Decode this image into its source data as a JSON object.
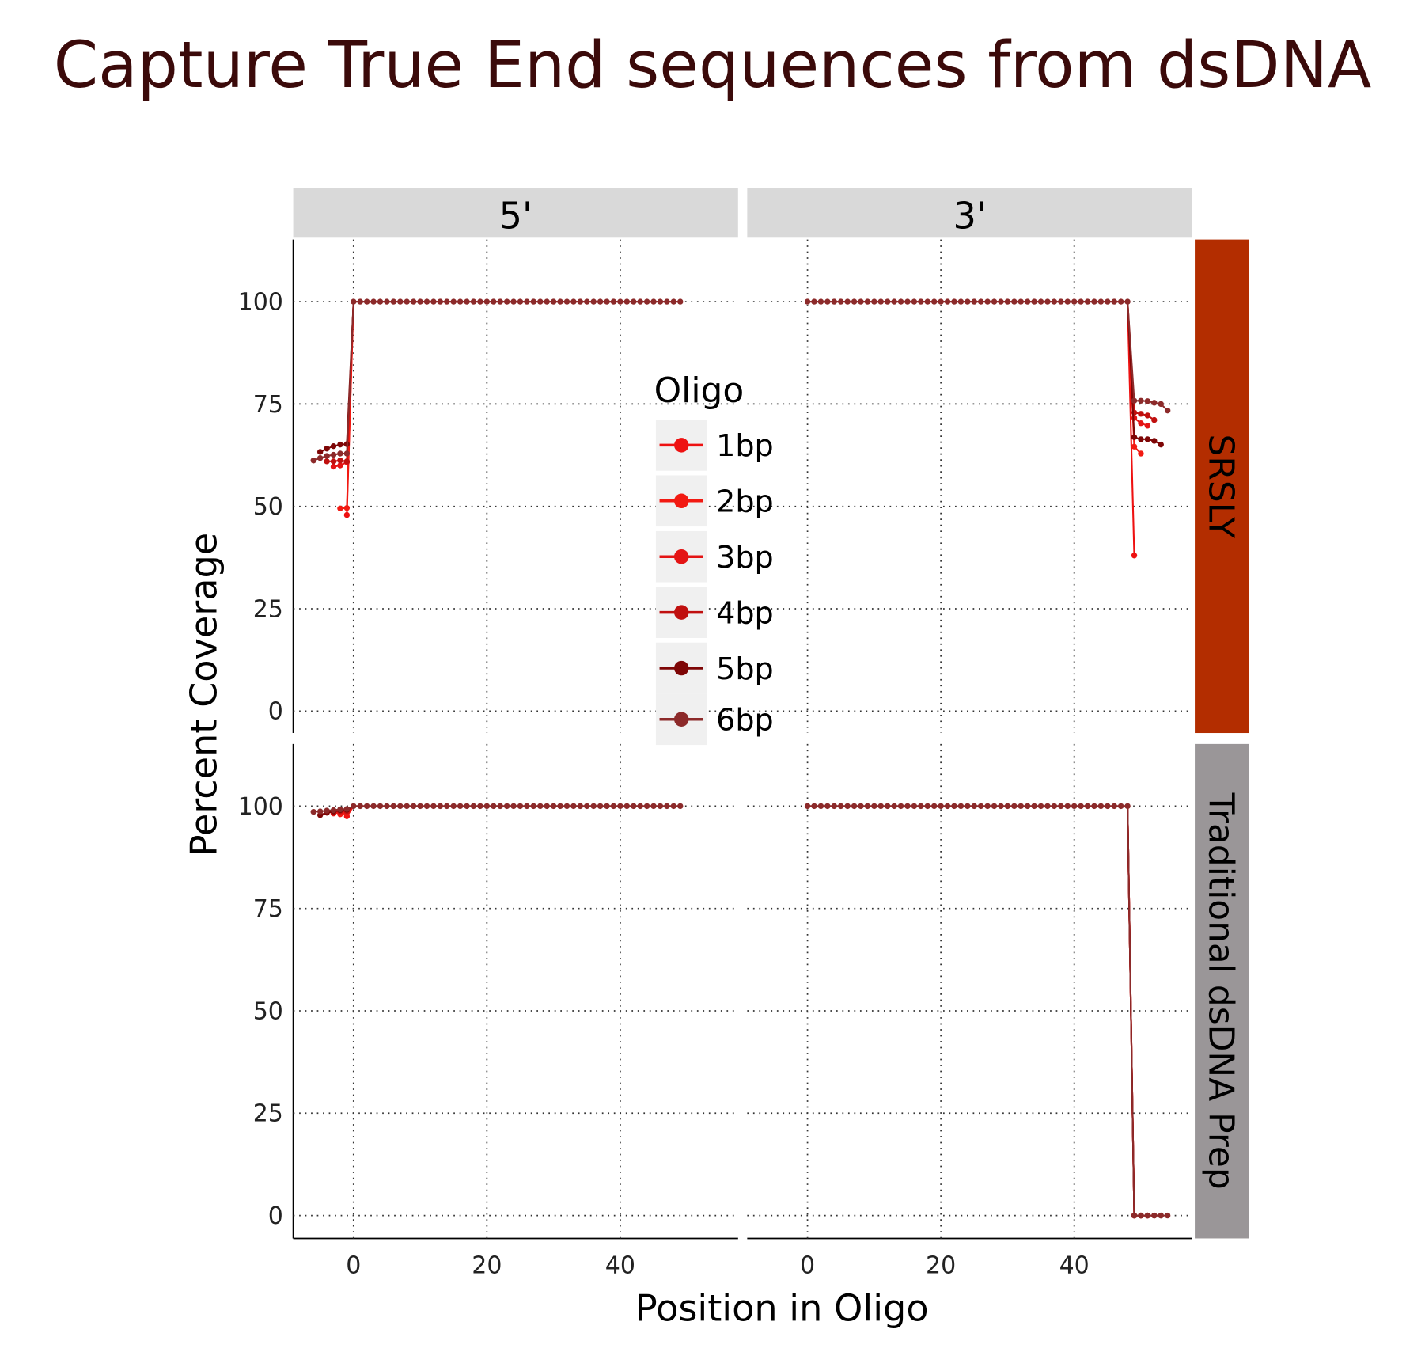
{
  "chart_data": {
    "type": "line",
    "title": "Capture True End sequences from dsDNA",
    "xlabel": "Position in Oligo",
    "ylabel": "Percent Coverage",
    "ylim": [
      -5,
      115
    ],
    "yticks": [
      0,
      25,
      50,
      75,
      100
    ],
    "xticks": [
      0,
      20,
      40
    ],
    "grid": true,
    "col_facets": [
      "5'",
      "3'"
    ],
    "row_facets": [
      "SRSLY",
      "Traditional dsDNA Prep"
    ],
    "legend": {
      "title": "Oligo",
      "placement": "center"
    },
    "series_names": [
      "1bp",
      "2bp",
      "3bp",
      "4bp",
      "5bp",
      "6bp"
    ],
    "colors": {
      "1bp": "#ee1111",
      "2bp": "#f21a12",
      "3bp": "#e41414",
      "4bp": "#c0100f",
      "5bp": "#7e0606",
      "6bp": "#8c2a2a",
      "srsly_strip": "#b32d00",
      "traditional_strip": "#9a9698",
      "col_strip": "#d9d9d9",
      "title": "#3b0a0a"
    },
    "panels": [
      {
        "col": "5'",
        "row": "SRSLY",
        "series": [
          {
            "name": "1bp",
            "x": [
              -1
            ],
            "y": [
              47.9
            ]
          },
          {
            "name": "2bp",
            "x": [
              -2,
              -1
            ],
            "y": [
              49.5,
              49.6
            ]
          },
          {
            "name": "3bp",
            "x": [
              -3,
              -2,
              -1
            ],
            "y": [
              59.7,
              60.0,
              60.8
            ]
          },
          {
            "name": "4bp",
            "x": [
              -4,
              -3,
              -2,
              -1
            ],
            "y": [
              61.0,
              61.0,
              61.2,
              61.0
            ]
          },
          {
            "name": "5bp",
            "x": [
              -5,
              -4,
              -3,
              -2,
              -1
            ],
            "y": [
              63.3,
              64.1,
              64.7,
              65.1,
              65.2
            ]
          },
          {
            "name": "6bp",
            "x": [
              -6,
              -5,
              -4,
              -3,
              -2,
              -1
            ],
            "y": [
              61.2,
              61.8,
              62.3,
              62.6,
              62.9,
              62.9
            ]
          }
        ],
        "main": {
          "x_from": 0,
          "x_to": 49,
          "y": 100
        }
      },
      {
        "col": "3'",
        "row": "SRSLY",
        "series": [
          {
            "name": "1bp",
            "x": [
              49
            ],
            "y": [
              38.0
            ]
          },
          {
            "name": "2bp",
            "x": [
              49,
              50
            ],
            "y": [
              64.6,
              62.9
            ]
          },
          {
            "name": "3bp",
            "x": [
              49,
              50,
              51
            ],
            "y": [
              71.6,
              70.3,
              69.7
            ]
          },
          {
            "name": "4bp",
            "x": [
              49,
              50,
              51,
              52
            ],
            "y": [
              72.9,
              72.6,
              72.2,
              71.1
            ]
          },
          {
            "name": "5bp",
            "x": [
              49,
              50,
              51,
              52,
              53
            ],
            "y": [
              66.9,
              66.4,
              66.4,
              66.0,
              65.1
            ]
          },
          {
            "name": "6bp",
            "x": [
              49,
              50,
              51,
              52,
              53,
              54
            ],
            "y": [
              75.8,
              75.8,
              75.7,
              75.3,
              75.0,
              73.4
            ]
          }
        ],
        "main": {
          "x_from": 0,
          "x_to": 48,
          "y": 100
        }
      },
      {
        "col": "5'",
        "row": "Traditional dsDNA Prep",
        "series": [
          {
            "name": "1bp",
            "x": [
              -1
            ],
            "y": [
              97.5
            ]
          },
          {
            "name": "2bp",
            "x": [
              -2,
              -1
            ],
            "y": [
              98.0,
              98.3
            ]
          },
          {
            "name": "3bp",
            "x": [
              -3,
              -2,
              -1
            ],
            "y": [
              98.2,
              98.5,
              98.6
            ]
          },
          {
            "name": "4bp",
            "x": [
              -4,
              -3,
              -2,
              -1
            ],
            "y": [
              98.4,
              98.6,
              98.8,
              98.8
            ]
          },
          {
            "name": "5bp",
            "x": [
              -5,
              -4,
              -3,
              -2,
              -1
            ],
            "y": [
              97.8,
              98.4,
              98.7,
              99.0,
              99.1
            ]
          },
          {
            "name": "6bp",
            "x": [
              -6,
              -5,
              -4,
              -3,
              -2,
              -1
            ],
            "y": [
              98.6,
              98.7,
              98.9,
              99.0,
              99.2,
              99.3
            ]
          }
        ],
        "main": {
          "x_from": 0,
          "x_to": 49,
          "y": 100
        }
      },
      {
        "col": "3'",
        "row": "Traditional dsDNA Prep",
        "series": [
          {
            "name": "1bp",
            "x": [
              49
            ],
            "y": [
              0
            ]
          },
          {
            "name": "2bp",
            "x": [
              49,
              50
            ],
            "y": [
              0,
              0
            ]
          },
          {
            "name": "3bp",
            "x": [
              49,
              50,
              51
            ],
            "y": [
              0,
              0,
              0
            ]
          },
          {
            "name": "4bp",
            "x": [
              49,
              50,
              51,
              52
            ],
            "y": [
              0,
              0,
              0,
              0
            ]
          },
          {
            "name": "5bp",
            "x": [
              49,
              50,
              51,
              52,
              53
            ],
            "y": [
              0,
              0,
              0,
              0,
              0
            ]
          },
          {
            "name": "6bp",
            "x": [
              49,
              50,
              51,
              52,
              53,
              54
            ],
            "y": [
              0,
              0,
              0,
              0,
              0,
              0
            ]
          }
        ],
        "main": {
          "x_from": 0,
          "x_to": 48,
          "y": 100
        }
      }
    ]
  }
}
